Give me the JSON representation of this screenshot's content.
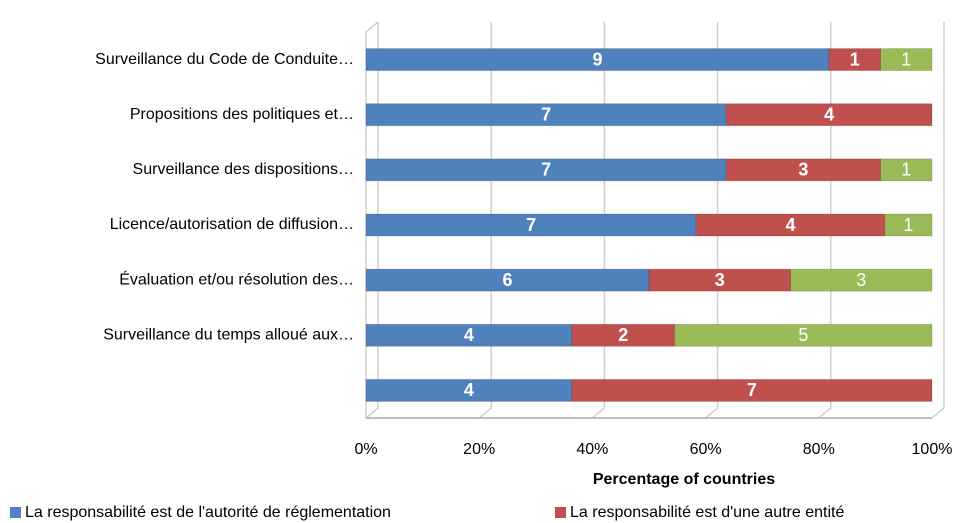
{
  "chart_data": {
    "type": "bar",
    "orientation": "horizontal",
    "stacking": "percent",
    "categories": [
      "Surveillance du Code de Conduite…",
      "Propositions des politiques et…",
      "Surveillance des dispositions…",
      "Licence/autorisation de diffusion…",
      "Évaluation et/ou résolution des…",
      "Surveillance du temps alloué aux…",
      null
    ],
    "series": [
      {
        "name": "La responsabilité est de l'autorité de réglementation",
        "color": "#4f81bd",
        "values": [
          9,
          7,
          7,
          7,
          6,
          4,
          4
        ]
      },
      {
        "name": "La responsabilité est d'une autre entité",
        "color": "#c0504d",
        "values": [
          1,
          4,
          3,
          4,
          3,
          2,
          7
        ]
      },
      {
        "color": "#9bbb59",
        "values": [
          1,
          null,
          1,
          1,
          3,
          5,
          null
        ]
      }
    ],
    "x_label": "Percentage of countries",
    "xlim": [
      0,
      100
    ],
    "xticks": [
      {
        "value": 0,
        "label": "0%"
      },
      {
        "value": 20,
        "label": "20%"
      },
      {
        "value": 40,
        "label": "40%"
      },
      {
        "value": 60,
        "label": "60%"
      },
      {
        "value": 80,
        "label": "80%"
      },
      {
        "value": 100,
        "label": "100%"
      }
    ],
    "grid": true,
    "legend": "bottom"
  }
}
